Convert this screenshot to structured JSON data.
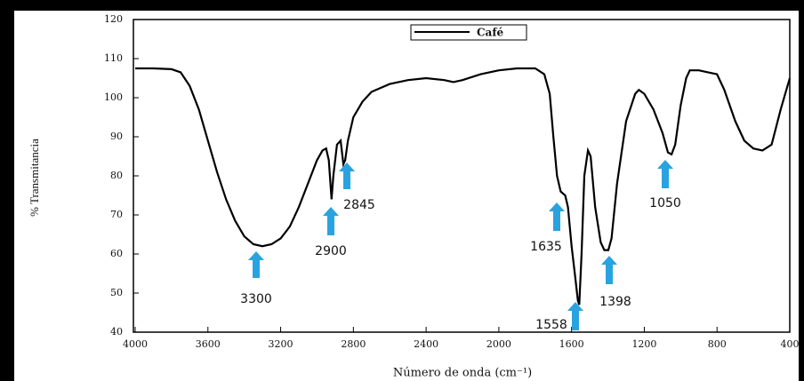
{
  "chart_data": {
    "type": "line",
    "xlabel": "Número de onda (cm⁻¹)",
    "ylabel": "% Transmitancia",
    "x": [
      4000,
      3900,
      3800,
      3750,
      3700,
      3650,
      3600,
      3550,
      3500,
      3450,
      3400,
      3350,
      3300,
      3250,
      3200,
      3150,
      3100,
      3050,
      3000,
      2970,
      2950,
      2935,
      2920,
      2910,
      2890,
      2870,
      2855,
      2845,
      2830,
      2800,
      2750,
      2700,
      2600,
      2500,
      2400,
      2300,
      2250,
      2200,
      2100,
      2000,
      1900,
      1800,
      1750,
      1720,
      1700,
      1680,
      1660,
      1635,
      1620,
      1600,
      1580,
      1565,
      1558,
      1545,
      1530,
      1510,
      1495,
      1470,
      1440,
      1420,
      1398,
      1380,
      1350,
      1300,
      1250,
      1230,
      1200,
      1150,
      1100,
      1070,
      1050,
      1030,
      1000,
      970,
      950,
      900,
      850,
      800,
      760,
      700,
      650,
      600,
      550,
      500,
      450,
      400
    ],
    "series": [
      {
        "name": "Café",
        "color": "#000000",
        "values": [
          107.5,
          107.5,
          107.3,
          106.5,
          103,
          97,
          89,
          81,
          74,
          68.5,
          64.5,
          62.5,
          62,
          62.5,
          64,
          67,
          72,
          78,
          84,
          86.5,
          87,
          84,
          74,
          80,
          88,
          89,
          83,
          84,
          89,
          95,
          99,
          101.5,
          103.5,
          104.5,
          105,
          104.5,
          104,
          104.5,
          106,
          107,
          107.5,
          107.5,
          106,
          101,
          90,
          80,
          76,
          75,
          72,
          62,
          54,
          48,
          47,
          60,
          80,
          86.5,
          85,
          72,
          63,
          61,
          61,
          64,
          78,
          94,
          101,
          102,
          101,
          97,
          91,
          86,
          85.5,
          88,
          98,
          105,
          107,
          107,
          106.5,
          106,
          102,
          94,
          89,
          87,
          86.5,
          88,
          97,
          105
        ]
      }
    ],
    "xlim": [
      4000,
      400
    ],
    "ylim": [
      40,
      120
    ],
    "xticks": [
      4000,
      3600,
      3200,
      2800,
      2400,
      2000,
      1600,
      1200,
      800,
      400
    ],
    "yticks": [
      40,
      50,
      60,
      70,
      80,
      90,
      100,
      110,
      120
    ],
    "annotations": [
      "3300",
      "2900",
      "2845",
      "1635",
      "1558",
      "1398",
      "1050"
    ],
    "annotation_color": "#29a3e0"
  }
}
